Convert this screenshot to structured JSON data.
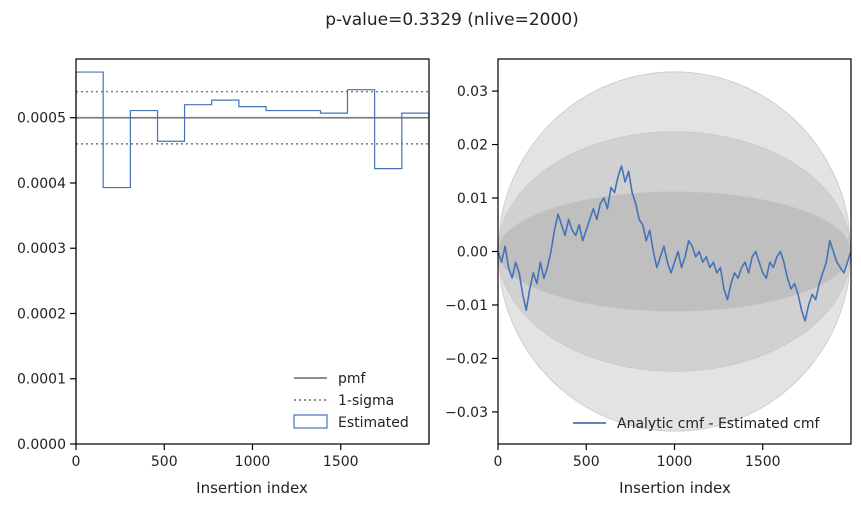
{
  "figure": {
    "title": "p-value=0.3329 (nlive=2000)"
  },
  "colors": {
    "estimated": "#4573B8",
    "pmf": "#7f7f7f",
    "sigma": "#7f7f7f",
    "band_outer": "#e3e3e3",
    "band_mid": "#d1d1d1",
    "band_inner": "#bfbfbf"
  },
  "chart_data": [
    {
      "type": "histogram",
      "title": "",
      "xlabel": "Insertion index",
      "ylabel": "",
      "xlim": [
        0,
        2000
      ],
      "ylim": [
        0,
        0.00059
      ],
      "xticks": [
        0,
        500,
        1000,
        1500
      ],
      "xtick_labels": [
        "0",
        "500",
        "1000",
        "1500"
      ],
      "yticks": [
        0,
        0.0001,
        0.0002,
        0.0003,
        0.0004,
        0.0005
      ],
      "ytick_labels": [
        "0.0000",
        "0.0001",
        "0.0002",
        "0.0003",
        "0.0004",
        "0.0005"
      ],
      "pmf": 0.0005,
      "sigma_upper": 0.00054,
      "sigma_lower": 0.00046,
      "bin_edges": [
        0,
        154,
        308,
        462,
        615,
        769,
        923,
        1077,
        1231,
        1385,
        1538,
        1692,
        1846,
        2000
      ],
      "estimated": [
        0.00057,
        0.000393,
        0.000511,
        0.000464,
        0.00052,
        0.000527,
        0.000517,
        0.000511,
        0.000511,
        0.000507,
        0.000543,
        0.000422,
        0.000507
      ],
      "legend": {
        "position": "lower-right",
        "entries": [
          {
            "label": "pmf",
            "style": "solid"
          },
          {
            "label": "1-sigma",
            "style": "dotted"
          },
          {
            "label": "Estimated",
            "style": "box"
          }
        ]
      }
    },
    {
      "type": "line",
      "title": "",
      "xlabel": "Insertion index",
      "ylabel": "",
      "xlim": [
        0,
        2000
      ],
      "ylim": [
        -0.036,
        0.036
      ],
      "xticks": [
        0,
        500,
        1000,
        1500
      ],
      "xtick_labels": [
        "0",
        "500",
        "1000",
        "1500"
      ],
      "yticks": [
        -0.03,
        -0.02,
        -0.01,
        0.0,
        0.01,
        0.02,
        0.03
      ],
      "ytick_labels": [
        "−0.03",
        "−0.02",
        "−0.01",
        "0.00",
        "0.01",
        "0.02",
        "0.03"
      ],
      "bands_sigma": [
        0.0112,
        0.0224,
        0.0336
      ],
      "series": [
        {
          "name": "Analytic cmf - Estimated cmf",
          "x": [
            0,
            20,
            40,
            60,
            80,
            100,
            120,
            140,
            160,
            180,
            200,
            220,
            240,
            260,
            280,
            300,
            320,
            340,
            360,
            380,
            400,
            420,
            440,
            460,
            480,
            500,
            520,
            540,
            560,
            580,
            600,
            620,
            640,
            660,
            680,
            700,
            720,
            740,
            760,
            780,
            800,
            820,
            840,
            860,
            880,
            900,
            920,
            940,
            960,
            980,
            1000,
            1020,
            1040,
            1060,
            1080,
            1100,
            1120,
            1140,
            1160,
            1180,
            1200,
            1220,
            1240,
            1260,
            1280,
            1300,
            1320,
            1340,
            1360,
            1380,
            1400,
            1420,
            1440,
            1460,
            1480,
            1500,
            1520,
            1540,
            1560,
            1580,
            1600,
            1620,
            1640,
            1660,
            1680,
            1700,
            1720,
            1740,
            1760,
            1780,
            1800,
            1820,
            1840,
            1860,
            1880,
            1900,
            1920,
            1940,
            1960,
            1980,
            2000
          ],
          "y": [
            0.0,
            -0.002,
            0.001,
            -0.003,
            -0.005,
            -0.002,
            -0.004,
            -0.008,
            -0.011,
            -0.007,
            -0.004,
            -0.006,
            -0.002,
            -0.005,
            -0.003,
            0.0,
            0.004,
            0.007,
            0.005,
            0.003,
            0.006,
            0.004,
            0.003,
            0.005,
            0.002,
            0.004,
            0.006,
            0.008,
            0.006,
            0.009,
            0.01,
            0.008,
            0.012,
            0.011,
            0.014,
            0.016,
            0.013,
            0.015,
            0.011,
            0.009,
            0.006,
            0.005,
            0.002,
            0.004,
            0.0,
            -0.003,
            -0.001,
            0.001,
            -0.002,
            -0.004,
            -0.002,
            0.0,
            -0.003,
            -0.001,
            0.002,
            0.001,
            -0.001,
            0.0,
            -0.002,
            -0.001,
            -0.003,
            -0.002,
            -0.004,
            -0.003,
            -0.007,
            -0.009,
            -0.006,
            -0.004,
            -0.005,
            -0.003,
            -0.002,
            -0.004,
            -0.001,
            0.0,
            -0.002,
            -0.004,
            -0.005,
            -0.002,
            -0.003,
            -0.001,
            0.0,
            -0.002,
            -0.005,
            -0.007,
            -0.006,
            -0.008,
            -0.011,
            -0.013,
            -0.01,
            -0.008,
            -0.009,
            -0.006,
            -0.004,
            -0.002,
            0.002,
            0.0,
            -0.002,
            -0.003,
            -0.004,
            -0.002,
            0.0
          ]
        }
      ],
      "legend": {
        "position": "lower-right",
        "entries": [
          {
            "label": "Analytic cmf - Estimated cmf",
            "style": "solid"
          }
        ]
      }
    }
  ]
}
